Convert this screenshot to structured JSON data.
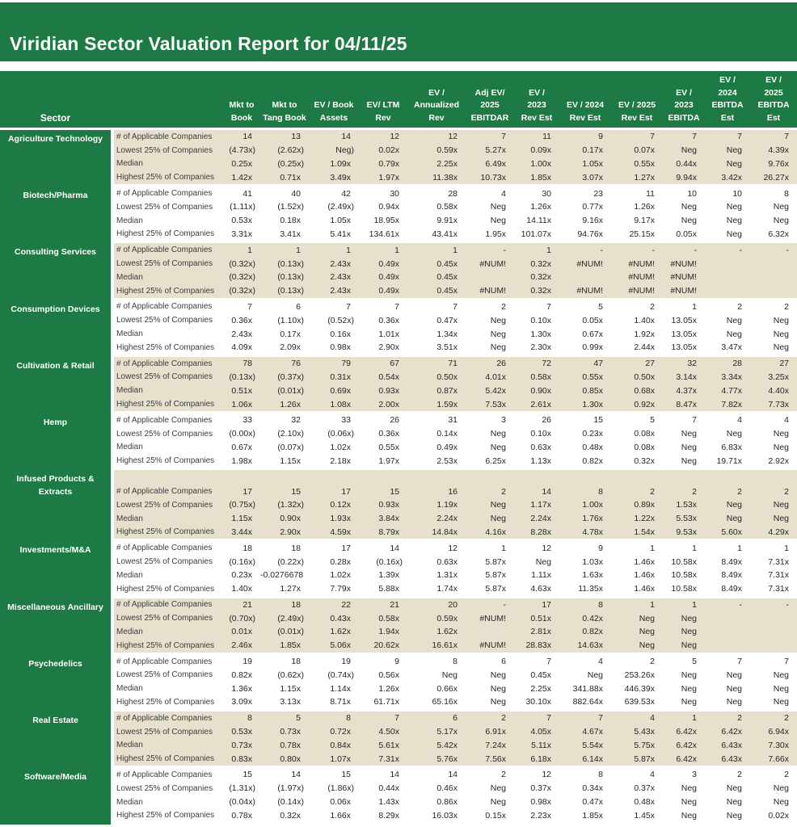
{
  "title": "Viridian Sector Valuation Report for 04/11/25",
  "colors": {
    "header_green": "#1d7a44",
    "band_beige": "#e6e0cd",
    "text": "#262626"
  },
  "chart_data": {
    "type": "table",
    "title": "Viridian Sector Valuation Report for 04/11/25",
    "sector_header": "Sector",
    "columns": [
      "Mkt to\nBook",
      "Mkt to\nTang Book",
      "EV / Book\nAssets",
      "EV/ LTM\nRev",
      "EV /\nAnnualized\nRev",
      "Adj EV/\n2025\nEBITDAR",
      "EV /\n2023\nRev Est",
      "EV /  2024\nRev Est",
      "EV /  2025\nRev Est",
      "EV /\n2023\nEBITDA",
      "EV /\n2024\nEBITDA\nEst",
      "EV /\n2025\nEBITDA\nEst"
    ],
    "row_labels": [
      "# of Applicable Companies",
      "Lowest 25% of Companies",
      "Median",
      "Highest 25% of Companies"
    ],
    "sectors": [
      {
        "name": "Agriculture Technology",
        "rows": [
          [
            "14",
            "13",
            "14",
            "12",
            "12",
            "7",
            "11",
            "9",
            "7",
            "7",
            "7",
            "7"
          ],
          [
            "(4.73x)",
            "(2.62x)",
            "Neg)",
            "0.02x",
            "0.59x",
            "5.27x",
            "0.09x",
            "0.17x",
            "0.07x",
            "Neg",
            "Neg",
            "4.39x"
          ],
          [
            "0.25x",
            "(0.25x)",
            "1.09x",
            "0.79x",
            "2.25x",
            "6.49x",
            "1.00x",
            "1.05x",
            "0.55x",
            "0.44x",
            "Neg",
            "9.76x"
          ],
          [
            "1.42x",
            "0.71x",
            "3.49x",
            "1.97x",
            "11.38x",
            "10.73x",
            "1.85x",
            "3.07x",
            "1.27x",
            "9.94x",
            "3.42x",
            "26.27x"
          ]
        ]
      },
      {
        "name": "Biotech/Pharma",
        "rows": [
          [
            "41",
            "40",
            "42",
            "30",
            "28",
            "4",
            "30",
            "23",
            "11",
            "10",
            "10",
            "8"
          ],
          [
            "(1.11x)",
            "(1.52x)",
            "(2.49x)",
            "0.94x",
            "0.58x",
            "Neg",
            "1.26x",
            "0.77x",
            "1.26x",
            "Neg",
            "Neg",
            "Neg"
          ],
          [
            "0.53x",
            "0.18x",
            "1.05x",
            "18.95x",
            "9.91x",
            "Neg",
            "14.11x",
            "9.16x",
            "9.17x",
            "Neg",
            "Neg",
            "Neg"
          ],
          [
            "3.31x",
            "3.41x",
            "5.41x",
            "134.61x",
            "43.41x",
            "1.95x",
            "101.07x",
            "94.76x",
            "25.15x",
            "0.05x",
            "Neg",
            "6.32x"
          ]
        ]
      },
      {
        "name": "Consulting Services",
        "rows": [
          [
            "1",
            "1",
            "1",
            "1",
            "1",
            "-",
            "1",
            "-",
            "-",
            "-",
            "-",
            "-"
          ],
          [
            "(0.32x)",
            "(0.13x)",
            "2.43x",
            "0.49x",
            "0.45x",
            "#NUM!",
            "0.32x",
            "#NUM!",
            "#NUM!",
            "#NUM!",
            "",
            ""
          ],
          [
            "(0.32x)",
            "(0.13x)",
            "2.43x",
            "0.49x",
            "0.45x",
            "",
            "0.32x",
            "",
            "#NUM!",
            "#NUM!",
            "",
            ""
          ],
          [
            "(0.32x)",
            "(0.13x)",
            "2.43x",
            "0.49x",
            "0.45x",
            "#NUM!",
            "0.32x",
            "#NUM!",
            "#NUM!",
            "#NUM!",
            "",
            ""
          ]
        ]
      },
      {
        "name": "Consumption Devices",
        "rows": [
          [
            "7",
            "6",
            "7",
            "7",
            "7",
            "2",
            "7",
            "5",
            "2",
            "1",
            "2",
            "2"
          ],
          [
            "0.36x",
            "(1.10x)",
            "(0.52x)",
            "0.36x",
            "0.47x",
            "Neg",
            "0.10x",
            "0.05x",
            "1.40x",
            "13.05x",
            "Neg",
            "Neg"
          ],
          [
            "2.43x",
            "0.17x",
            "0.16x",
            "1.01x",
            "1.34x",
            "Neg",
            "1.30x",
            "0.67x",
            "1.92x",
            "13.05x",
            "Neg",
            "Neg"
          ],
          [
            "4.09x",
            "2.09x",
            "0.98x",
            "2.90x",
            "3.51x",
            "Neg",
            "2.30x",
            "0.99x",
            "2.44x",
            "13.05x",
            "3.47x",
            "Neg"
          ]
        ]
      },
      {
        "name": "Cultivation & Retail",
        "rows": [
          [
            "78",
            "76",
            "79",
            "67",
            "71",
            "26",
            "72",
            "47",
            "27",
            "32",
            "28",
            "27"
          ],
          [
            "(0.13x)",
            "(0.37x)",
            "0.31x",
            "0.54x",
            "0.50x",
            "4.01x",
            "0.58x",
            "0.55x",
            "0.50x",
            "3.14x",
            "3.34x",
            "3.25x"
          ],
          [
            "0.51x",
            "(0.01x)",
            "0.69x",
            "0.93x",
            "0.87x",
            "5.42x",
            "0.90x",
            "0.85x",
            "0.68x",
            "4.37x",
            "4.77x",
            "4.40x"
          ],
          [
            "1.06x",
            "1.26x",
            "1.08x",
            "2.00x",
            "1.59x",
            "7.53x",
            "2.61x",
            "1.30x",
            "0.92x",
            "8.47x",
            "7.82x",
            "7.73x"
          ]
        ]
      },
      {
        "name": "Hemp",
        "rows": [
          [
            "33",
            "32",
            "33",
            "26",
            "31",
            "3",
            "26",
            "15",
            "5",
            "7",
            "4",
            "4"
          ],
          [
            "(0.00x)",
            "(2.10x)",
            "(0.06x)",
            "0.36x",
            "0.14x",
            "Neg",
            "0.10x",
            "0.23x",
            "0.08x",
            "Neg",
            "Neg",
            "Neg"
          ],
          [
            "0.67x",
            "(0.07x)",
            "1.02x",
            "0.55x",
            "0.49x",
            "Neg",
            "0.63x",
            "0.48x",
            "0.08x",
            "Neg",
            "6.83x",
            "Neg"
          ],
          [
            "1.98x",
            "1.15x",
            "2.18x",
            "1.97x",
            "2.53x",
            "6.25x",
            "1.13x",
            "0.82x",
            "0.32x",
            "Neg",
            "19.71x",
            "2.92x"
          ]
        ]
      },
      {
        "name": "Infused Products & Extracts",
        "rows": [
          [
            "17",
            "15",
            "17",
            "15",
            "16",
            "2",
            "14",
            "8",
            "2",
            "2",
            "2",
            "2"
          ],
          [
            "(0.75x)",
            "(1.32x)",
            "0.12x",
            "0.93x",
            "1.19x",
            "Neg",
            "1.17x",
            "1.00x",
            "0.89x",
            "1.53x",
            "Neg",
            "Neg"
          ],
          [
            "1.15x",
            "0.90x",
            "1.93x",
            "3.84x",
            "2.24x",
            "Neg",
            "2.24x",
            "1.76x",
            "1.22x",
            "5.53x",
            "Neg",
            "Neg"
          ],
          [
            "3.44x",
            "2.90x",
            "4.59x",
            "8.79x",
            "14.84x",
            "4.16x",
            "8.28x",
            "4.78x",
            "1.54x",
            "9.53x",
            "5.60x",
            "4.29x"
          ]
        ]
      },
      {
        "name": "Investments/M&A",
        "rows": [
          [
            "18",
            "18",
            "17",
            "14",
            "12",
            "1",
            "12",
            "9",
            "1",
            "1",
            "1",
            "1"
          ],
          [
            "(0.16x)",
            "(0.22x)",
            "0.28x",
            "(0.16x)",
            "0.63x",
            "5.87x",
            "Neg",
            "1.03x",
            "1.46x",
            "10.58x",
            "8.49x",
            "7.31x"
          ],
          [
            "0.23x",
            "-0.0276678",
            "1.02x",
            "1.39x",
            "1.31x",
            "5.87x",
            "1.11x",
            "1.63x",
            "1.46x",
            "10.58x",
            "8.49x",
            "7.31x"
          ],
          [
            "1.40x",
            "1.27x",
            "7.79x",
            "5.88x",
            "1.74x",
            "5.87x",
            "4.63x",
            "11.35x",
            "1.46x",
            "10.58x",
            "8.49x",
            "7.31x"
          ]
        ]
      },
      {
        "name": "Miscellaneous Ancillary",
        "rows": [
          [
            "21",
            "18",
            "22",
            "21",
            "20",
            "-",
            "17",
            "8",
            "1",
            "1",
            "-",
            "-"
          ],
          [
            "(0.70x)",
            "(2.49x)",
            "0.43x",
            "0.58x",
            "0.59x",
            "#NUM!",
            "0.51x",
            "0.42x",
            "Neg",
            "Neg",
            "",
            ""
          ],
          [
            "0.01x",
            "(0.01x)",
            "1.62x",
            "1.94x",
            "1.62x",
            "",
            "2.81x",
            "0.82x",
            "Neg",
            "Neg",
            "",
            ""
          ],
          [
            "2.46x",
            "1.85x",
            "5.06x",
            "20.62x",
            "16.61x",
            "#NUM!",
            "28.83x",
            "14.63x",
            "Neg",
            "Neg",
            "",
            ""
          ]
        ]
      },
      {
        "name": "Psychedelics",
        "rows": [
          [
            "19",
            "18",
            "19",
            "9",
            "8",
            "6",
            "7",
            "4",
            "2",
            "5",
            "7",
            "7"
          ],
          [
            "0.82x",
            "(0.62x)",
            "(0.74x)",
            "0.56x",
            "Neg",
            "Neg",
            "0.45x",
            "Neg",
            "253.26x",
            "Neg",
            "Neg",
            "Neg"
          ],
          [
            "1.36x",
            "1.15x",
            "1.14x",
            "1.26x",
            "0.66x",
            "Neg",
            "2.25x",
            "341.88x",
            "446.39x",
            "Neg",
            "Neg",
            "Neg"
          ],
          [
            "3.09x",
            "3.13x",
            "8.71x",
            "61.71x",
            "65.16x",
            "Neg",
            "30.10x",
            "882.64x",
            "639.53x",
            "Neg",
            "Neg",
            "Neg"
          ]
        ]
      },
      {
        "name": "Real Estate",
        "rows": [
          [
            "8",
            "5",
            "8",
            "7",
            "6",
            "2",
            "7",
            "7",
            "4",
            "1",
            "2",
            "2"
          ],
          [
            "0.53x",
            "0.73x",
            "0.72x",
            "4.50x",
            "5.17x",
            "6.91x",
            "4.05x",
            "4.67x",
            "5.43x",
            "6.42x",
            "6.42x",
            "6.94x"
          ],
          [
            "0.73x",
            "0.78x",
            "0.84x",
            "5.61x",
            "5.42x",
            "7.24x",
            "5.11x",
            "5.54x",
            "5.75x",
            "6.42x",
            "6.43x",
            "7.30x"
          ],
          [
            "0.83x",
            "0.80x",
            "1.07x",
            "7.31x",
            "5.76x",
            "7.56x",
            "6.18x",
            "6.14x",
            "5.87x",
            "6.42x",
            "6.43x",
            "7.66x"
          ]
        ]
      },
      {
        "name": "Software/Media",
        "rows": [
          [
            "15",
            "14",
            "15",
            "14",
            "14",
            "2",
            "12",
            "8",
            "4",
            "3",
            "2",
            "2"
          ],
          [
            "(1.31x)",
            "(1.97x)",
            "(1.86x)",
            "0.44x",
            "0.46x",
            "Neg",
            "0.37x",
            "0.34x",
            "0.37x",
            "Neg",
            "Neg",
            "Neg"
          ],
          [
            "(0.04x)",
            "(0.14x)",
            "0.06x",
            "1.43x",
            "0.86x",
            "Neg",
            "0.98x",
            "0.47x",
            "0.48x",
            "Neg",
            "Neg",
            "Neg"
          ],
          [
            "0.78x",
            "0.32x",
            "1.66x",
            "8.29x",
            "16.03x",
            "0.15x",
            "2.23x",
            "1.85x",
            "1.45x",
            "Neg",
            "Neg",
            "0.02x"
          ]
        ]
      }
    ]
  }
}
